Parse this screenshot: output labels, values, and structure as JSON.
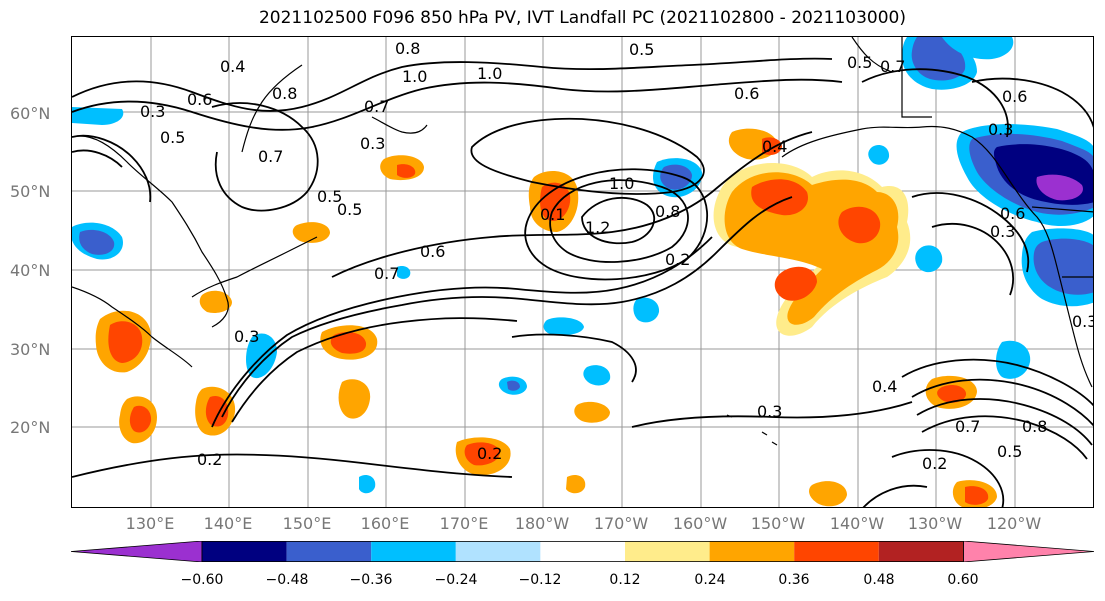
{
  "title": "2021102500 F096 850 hPa PV, IVT Landfall PC (2021102800 - 2021103000)",
  "lat_labels": [
    "60°N",
    "50°N",
    "40°N",
    "30°N",
    "20°N"
  ],
  "lon_labels": [
    "130°E",
    "140°E",
    "150°E",
    "160°E",
    "170°E",
    "180°W",
    "170°W",
    "160°W",
    "150°W",
    "140°W",
    "130°W",
    "120°W"
  ],
  "contour_labels": [
    "0.8",
    "0.5",
    "0.4",
    "1.0",
    "1.0",
    "0.8",
    "0.6",
    "0.5",
    "0.7",
    "0.7",
    "0.3",
    "0.3",
    "0.5",
    "0.7",
    "0.5",
    "0.6",
    "1.0",
    "1.2",
    "0.8",
    "0.6",
    "0.4",
    "0.2",
    "0.1",
    "0.7",
    "0.3",
    "0.6",
    "0.3",
    "0.3",
    "0.2",
    "0.2",
    "0.4",
    "0.3",
    "0.7",
    "0.5",
    "0.8",
    "0.2",
    "0.5",
    "0.6",
    "0.3"
  ],
  "colorbar": {
    "colors": [
      "#9b30d0",
      "#000080",
      "#3a5fcd",
      "#00bfff",
      "#b0e2ff",
      "#ffffff",
      "#ffec8b",
      "#ffa500",
      "#ff4500",
      "#b22222",
      "#ff82ab"
    ],
    "tick_labels": [
      "−0.60",
      "−0.48",
      "−0.36",
      "−0.24",
      "−0.12",
      "0.12",
      "0.24",
      "0.36",
      "0.48",
      "0.60"
    ]
  },
  "colors": {
    "positive_1": "#ffec8b",
    "positive_2": "#ffa500",
    "positive_3": "#ff4500",
    "negative_1": "#00bfff",
    "negative_2": "#3a5fcd",
    "negative_3": "#000080",
    "negative_4": "#9b30d0",
    "contour": "#000000",
    "grid": "#999999"
  }
}
